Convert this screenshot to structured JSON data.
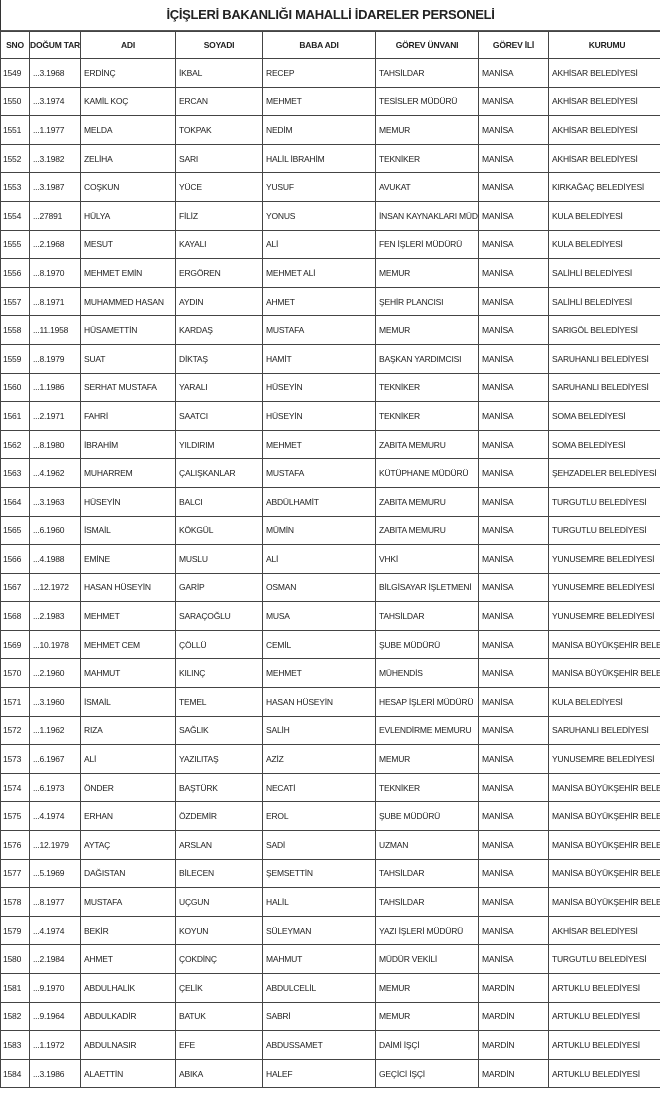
{
  "title": "İÇİŞLERİ BAKANLIĞI MAHALLİ İDARELER PERSONELİ",
  "columns": [
    "SNO",
    "DOĞUM TARİHİ",
    "ADI",
    "SOYADI",
    "BABA ADI",
    "GÖREV ÜNVANI",
    "GÖREV İLİ",
    "KURUMU"
  ],
  "rows": [
    [
      "1549",
      "...3.1968",
      "ERDİNÇ",
      "İKBAL",
      "RECEP",
      "TAHSİLDAR",
      "MANİSA",
      "AKHİSAR BELEDİYESİ"
    ],
    [
      "1550",
      "...3.1974",
      "KAMİL KOÇ",
      "ERCAN",
      "MEHMET",
      "TESİSLER MÜDÜRÜ",
      "MANİSA",
      "AKHİSAR BELEDİYESİ"
    ],
    [
      "1551",
      "...1.1977",
      "MELDA",
      "TOKPAK",
      "NEDİM",
      "MEMUR",
      "MANİSA",
      "AKHİSAR BELEDİYESİ"
    ],
    [
      "1552",
      "...3.1982",
      "ZELİHA",
      "SARI",
      "HALİL İBRAHİM",
      "TEKNİKER",
      "MANİSA",
      "AKHİSAR BELEDİYESİ"
    ],
    [
      "1553",
      "...3.1987",
      "COŞKUN",
      "YÜCE",
      "YUSUF",
      "AVUKAT",
      "MANİSA",
      "KIRKAĞAÇ BELEDİYESİ"
    ],
    [
      "1554",
      "...27891",
      "HÜLYA",
      "FİLİZ",
      "YONUS",
      "İNSAN KAYNAKLARI MÜDÜRÜ",
      "MANİSA",
      "KULA BELEDİYESİ"
    ],
    [
      "1555",
      "...2.1968",
      "MESUT",
      "KAYALI",
      "ALİ",
      "FEN İŞLERİ MÜDÜRÜ",
      "MANİSA",
      "KULA BELEDİYESİ"
    ],
    [
      "1556",
      "...8.1970",
      "MEHMET EMİN",
      "ERGÖREN",
      "MEHMET ALİ",
      "MEMUR",
      "MANİSA",
      "SALİHLİ BELEDİYESİ"
    ],
    [
      "1557",
      "...8.1971",
      "MUHAMMED HASAN",
      "AYDIN",
      "AHMET",
      "ŞEHİR PLANCISI",
      "MANİSA",
      "SALİHLİ BELEDİYESİ"
    ],
    [
      "1558",
      "...11.1958",
      "HÜSAMETTİN",
      "KARDAŞ",
      "MUSTAFA",
      "MEMUR",
      "MANİSA",
      "SARIGÖL BELEDİYESİ"
    ],
    [
      "1559",
      "...8.1979",
      "SUAT",
      "DİKTAŞ",
      "HAMİT",
      "BAŞKAN YARDIMCISI",
      "MANİSA",
      "SARUHANLI BELEDİYESİ"
    ],
    [
      "1560",
      "...1.1986",
      "SERHAT MUSTAFA",
      "YARALI",
      "HÜSEYİN",
      "TEKNİKER",
      "MANİSA",
      "SARUHANLI BELEDİYESİ"
    ],
    [
      "1561",
      "...2.1971",
      "FAHRİ",
      "SAATCI",
      "HÜSEYİN",
      "TEKNİKER",
      "MANİSA",
      "SOMA BELEDİYESİ"
    ],
    [
      "1562",
      "...8.1980",
      "İBRAHİM",
      "YILDIRIM",
      "MEHMET",
      "ZABITA MEMURU",
      "MANİSA",
      "SOMA BELEDİYESİ"
    ],
    [
      "1563",
      "...4.1962",
      "MUHARREM",
      "ÇALIŞKANLAR",
      "MUSTAFA",
      "KÜTÜPHANE MÜDÜRÜ",
      "MANİSA",
      "ŞEHZADELER BELEDİYESİ"
    ],
    [
      "1564",
      "...3.1963",
      "HÜSEYİN",
      "BALCI",
      "ABDÜLHAMİT",
      "ZABITA MEMURU",
      "MANİSA",
      "TURGUTLU BELEDİYESİ"
    ],
    [
      "1565",
      "...6.1960",
      "İSMAİL",
      "KÖKGÜL",
      "MÜMİN",
      "ZABITA MEMURU",
      "MANİSA",
      "TURGUTLU BELEDİYESİ"
    ],
    [
      "1566",
      "...4.1988",
      "EMİNE",
      "MUSLU",
      "ALİ",
      "VHKİ",
      "MANİSA",
      "YUNUSEMRE BELEDİYESİ"
    ],
    [
      "1567",
      "...12.1972",
      "HASAN HÜSEYİN",
      "GARİP",
      "OSMAN",
      "BİLGİSAYAR İŞLETMENİ",
      "MANİSA",
      "YUNUSEMRE BELEDİYESİ"
    ],
    [
      "1568",
      "...2.1983",
      "MEHMET",
      "SARAÇOĞLU",
      "MUSA",
      "TAHSİLDAR",
      "MANİSA",
      "YUNUSEMRE BELEDİYESİ"
    ],
    [
      "1569",
      "...10.1978",
      "MEHMET CEM",
      "ÇÖLLÜ",
      "CEMİL",
      "ŞUBE MÜDÜRÜ",
      "MANİSA",
      "MANİSA BÜYÜKŞEHİR BELEDİYESİ"
    ],
    [
      "1570",
      "...2.1960",
      "MAHMUT",
      "KILINÇ",
      "MEHMET",
      "MÜHENDİS",
      "MANİSA",
      "MANİSA BÜYÜKŞEHİR BELEDİYESİ"
    ],
    [
      "1571",
      "...3.1960",
      "İSMAİL",
      "TEMEL",
      "HASAN HÜSEYİN",
      "HESAP İŞLERİ MÜDÜRÜ",
      "MANİSA",
      "KULA BELEDİYESİ"
    ],
    [
      "1572",
      "...1.1962",
      "RIZA",
      "SAĞLIK",
      "SALİH",
      "EVLENDİRME MEMURU",
      "MANİSA",
      "SARUHANLI BELEDİYESİ"
    ],
    [
      "1573",
      "...6.1967",
      "ALİ",
      "YAZILITAŞ",
      "AZİZ",
      "MEMUR",
      "MANİSA",
      "YUNUSEMRE BELEDİYESİ"
    ],
    [
      "1574",
      "...6.1973",
      "ÖNDER",
      "BAŞTÜRK",
      "NECATİ",
      "TEKNİKER",
      "MANİSA",
      "MANİSA BÜYÜKŞEHİR BELEDİYESİ"
    ],
    [
      "1575",
      "...4.1974",
      "ERHAN",
      "ÖZDEMİR",
      "EROL",
      "ŞUBE MÜDÜRÜ",
      "MANİSA",
      "MANİSA BÜYÜKŞEHİR BELEDİYESİ"
    ],
    [
      "1576",
      "...12.1979",
      "AYTAÇ",
      "ARSLAN",
      "SADİ",
      "UZMAN",
      "MANİSA",
      "MANİSA BÜYÜKŞEHİR BELEDİYESİ"
    ],
    [
      "1577",
      "...5.1969",
      "DAĞISTAN",
      "BİLECEN",
      "ŞEMSETTİN",
      "TAHSİLDAR",
      "MANİSA",
      "MANİSA BÜYÜKŞEHİR BELEDİYESİ"
    ],
    [
      "1578",
      "...8.1977",
      "MUSTAFA",
      "UÇGUN",
      "HALİL",
      "TAHSİLDAR",
      "MANİSA",
      "MANİSA BÜYÜKŞEHİR BELEDİYESİ"
    ],
    [
      "1579",
      "...4.1974",
      "BEKİR",
      "KOYUN",
      "SÜLEYMAN",
      "YAZI İŞLERİ MÜDÜRÜ",
      "MANİSA",
      "AKHİSAR BELEDİYESİ"
    ],
    [
      "1580",
      "...2.1984",
      "AHMET",
      "ÇOKDİNÇ",
      "MAHMUT",
      "MÜDÜR VEKİLİ",
      "MANİSA",
      "TURGUTLU BELEDİYESİ"
    ],
    [
      "1581",
      "...9.1970",
      "ABDULHALİK",
      "ÇELİK",
      "ABDULCELİL",
      "MEMUR",
      "MARDİN",
      "ARTUKLU BELEDİYESİ"
    ],
    [
      "1582",
      "...9.1964",
      "ABDULKADİR",
      "BATUK",
      "SABRİ",
      "MEMUR",
      "MARDİN",
      "ARTUKLU BELEDİYESİ"
    ],
    [
      "1583",
      "...1.1972",
      "ABDULNASIR",
      "EFE",
      "ABDUSSAMET",
      "DAİMİ İŞÇİ",
      "MARDİN",
      "ARTUKLU BELEDİYESİ"
    ],
    [
      "1584",
      "...3.1986",
      "ALAETTİN",
      "ABIKA",
      "HALEF",
      "GEÇİCİ İŞÇİ",
      "MARDİN",
      "ARTUKLU BELEDİYESİ"
    ]
  ]
}
